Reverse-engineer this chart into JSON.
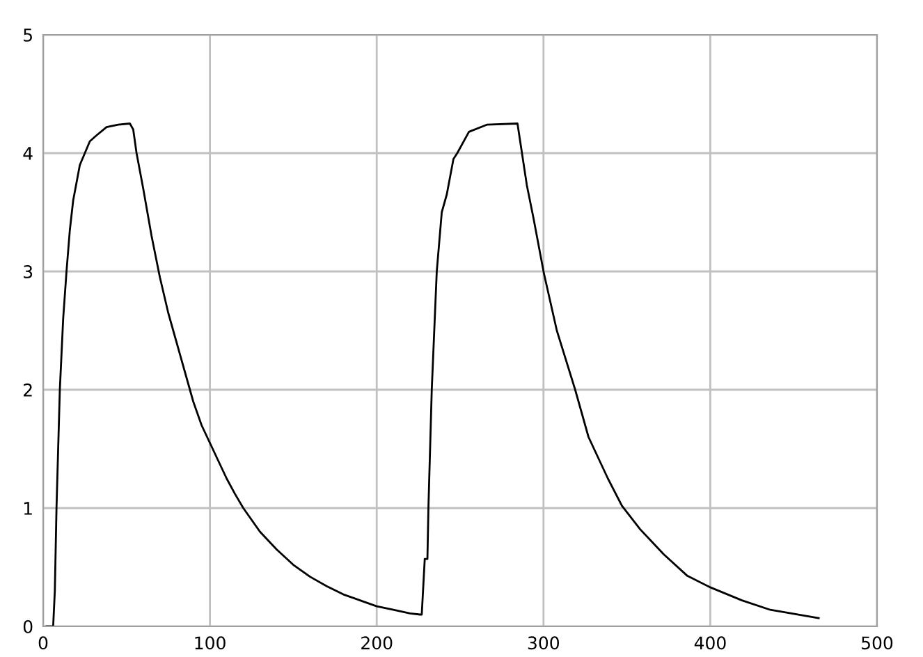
{
  "chart_data": {
    "type": "line",
    "xlim": [
      0,
      500
    ],
    "ylim": [
      0,
      5
    ],
    "xticks": [
      0,
      100,
      200,
      300,
      400,
      500
    ],
    "yticks": [
      0,
      1,
      2,
      3,
      4,
      5
    ],
    "grid": true,
    "marker": "none",
    "line_style": "solid",
    "series": [
      {
        "color": "#000000",
        "x": [
          2,
          6,
          7,
          8,
          9,
          10,
          12,
          14,
          16,
          18,
          22,
          25,
          28,
          32,
          38,
          45,
          52,
          54,
          56,
          60,
          65,
          70,
          75,
          80,
          85,
          90,
          95,
          100,
          105,
          110,
          115,
          120,
          125,
          130,
          140,
          150,
          160,
          170,
          180,
          190,
          200,
          210,
          220,
          226,
          227,
          228.8,
          230.4,
          231,
          233,
          236,
          239,
          242,
          246,
          248.3,
          255.3,
          266,
          284.4,
          290,
          294,
          300.3,
          308,
          319,
          327,
          338.6,
          347,
          358,
          372,
          386,
          400,
          419,
          436,
          465
        ],
        "values": [
          0,
          0,
          0.3,
          1.0,
          1.5,
          2.0,
          2.6,
          3.0,
          3.35,
          3.6,
          3.9,
          4.0,
          4.1,
          4.15,
          4.22,
          4.24,
          4.25,
          4.2,
          4.0,
          3.7,
          3.3,
          2.95,
          2.65,
          2.4,
          2.15,
          1.9,
          1.7,
          1.55,
          1.4,
          1.25,
          1.12,
          1.0,
          0.9,
          0.8,
          0.65,
          0.52,
          0.42,
          0.34,
          0.27,
          0.22,
          0.17,
          0.14,
          0.11,
          0.1,
          0.1,
          0.57,
          0.57,
          1.0,
          2.0,
          3.0,
          3.5,
          3.65,
          3.95,
          4.0,
          4.18,
          4.24,
          4.25,
          3.73,
          3.45,
          2.98,
          2.5,
          2.0,
          1.6,
          1.25,
          1.02,
          0.82,
          0.61,
          0.43,
          0.33,
          0.22,
          0.14,
          0.07
        ]
      }
    ]
  }
}
